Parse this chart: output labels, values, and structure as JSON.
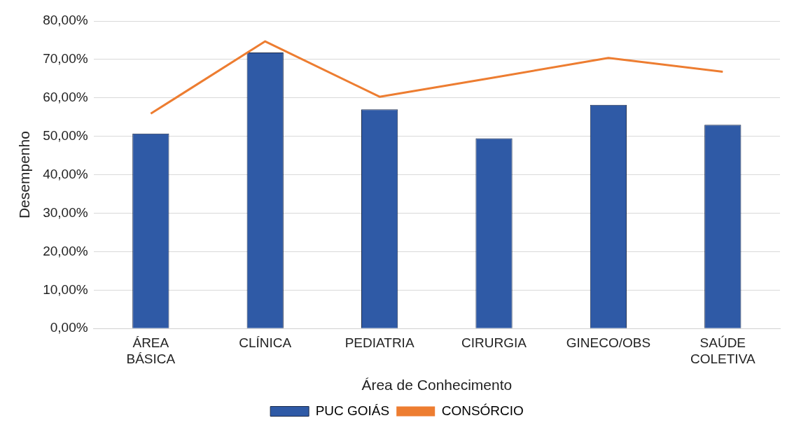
{
  "chart_data": {
    "type": "bar",
    "xlabel": "Área de Conhecimento",
    "ylabel": "Desempenho",
    "categories": [
      "ÁREA BÁSICA",
      "CLÍNICA",
      "PEDIATRIA",
      "CIRURGIA",
      "GINECO/OBS",
      "SAÚDE COLETIVA"
    ],
    "series": [
      {
        "name": "PUC GOIÁS",
        "color": "#2f5aa6",
        "values": [
          50.7,
          71.8,
          57.0,
          49.5,
          58.2,
          53.0
        ]
      },
      {
        "name": "CONSÓRCIO",
        "type": "line",
        "color": "#ed7d31",
        "values": [
          55.9,
          74.7,
          60.3,
          65.3,
          70.4,
          66.8
        ]
      }
    ],
    "ylim": [
      0,
      80
    ],
    "yticks": [
      {
        "value": 0,
        "label": "0,00%"
      },
      {
        "value": 10,
        "label": "10,00%"
      },
      {
        "value": 20,
        "label": "20,00%"
      },
      {
        "value": 30,
        "label": "30,00%"
      },
      {
        "value": 40,
        "label": "40,00%"
      },
      {
        "value": 50,
        "label": "50,00%"
      },
      {
        "value": 60,
        "label": "60,00%"
      },
      {
        "value": 70,
        "label": "70,00%"
      },
      {
        "value": 80,
        "label": "80,00%"
      }
    ],
    "grid": "y",
    "legend": "bottom",
    "marker": "none"
  }
}
